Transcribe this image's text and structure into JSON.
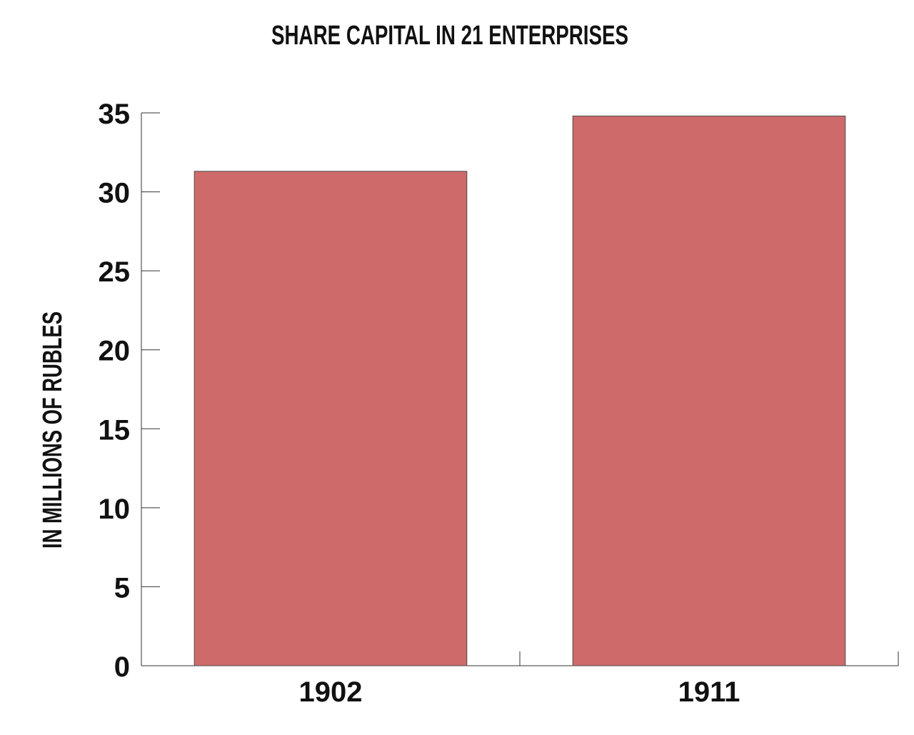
{
  "chart_data": {
    "type": "bar",
    "title": "SHARE CAPITAL IN 21 ENTERPRISES",
    "xlabel": "",
    "ylabel": "IN MILLIONS OF RUBLES",
    "categories": [
      "1902",
      "1911"
    ],
    "values": [
      31.3,
      34.8
    ],
    "ylim": [
      0,
      35
    ],
    "yticks": [
      0,
      5,
      10,
      15,
      20,
      25,
      30,
      35
    ],
    "grid": false,
    "legend": "none",
    "bar_color": "#cf6a6a",
    "bar_edge_color": "#4a4a4a",
    "axis_color": "#333333"
  }
}
